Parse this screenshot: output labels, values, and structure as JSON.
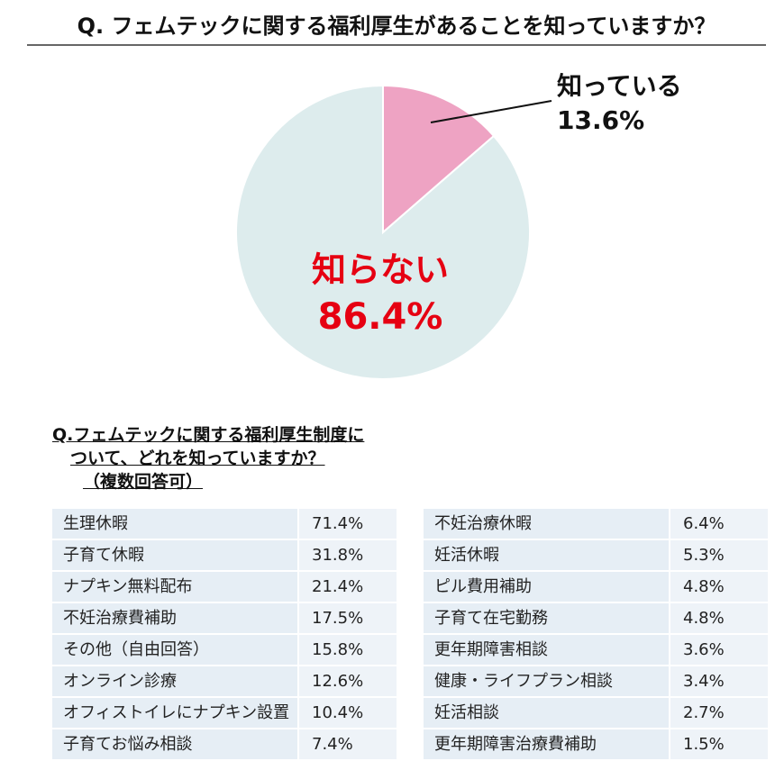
{
  "chart_data": {
    "type": "pie",
    "title": "Q. フェムテックに関する福利厚生があることを知っていますか？",
    "categories": [
      "知っている",
      "知らない"
    ],
    "values": [
      13.6,
      86.4
    ],
    "value_labels": [
      "13.6%",
      "86.4%"
    ],
    "colors": [
      "#eea3c3",
      "#ddeced"
    ]
  },
  "table": {
    "title_lines": [
      "Q.フェムテックに関する福利厚生制度に",
      "ついて、どれを知っていますか？",
      "（複数回答可）"
    ],
    "left_rows": [
      [
        "生理休暇",
        "71.4%"
      ],
      [
        "子育て休暇",
        "31.8%"
      ],
      [
        "ナプキン無料配布",
        "21.4%"
      ],
      [
        "不妊治療費補助",
        "17.5%"
      ],
      [
        "その他（自由回答）",
        "15.8%"
      ],
      [
        "オンライン診療",
        "12.6%"
      ],
      [
        "オフィストイレにナプキン設置",
        "10.4%"
      ],
      [
        "子育てお悩み相談",
        "7.4%"
      ]
    ],
    "right_rows": [
      [
        "不妊治療休暇",
        "6.4%"
      ],
      [
        "妊活休暇",
        "5.3%"
      ],
      [
        "ピル費用補助",
        "4.8%"
      ],
      [
        "子育て在宅勤務",
        "4.8%"
      ],
      [
        "更年期障害相談",
        "3.6%"
      ],
      [
        "健康・ライフプラン相談",
        "3.4%"
      ],
      [
        "妊活相談",
        "2.7%"
      ],
      [
        "更年期障害治療費補助",
        "1.5%"
      ]
    ]
  }
}
